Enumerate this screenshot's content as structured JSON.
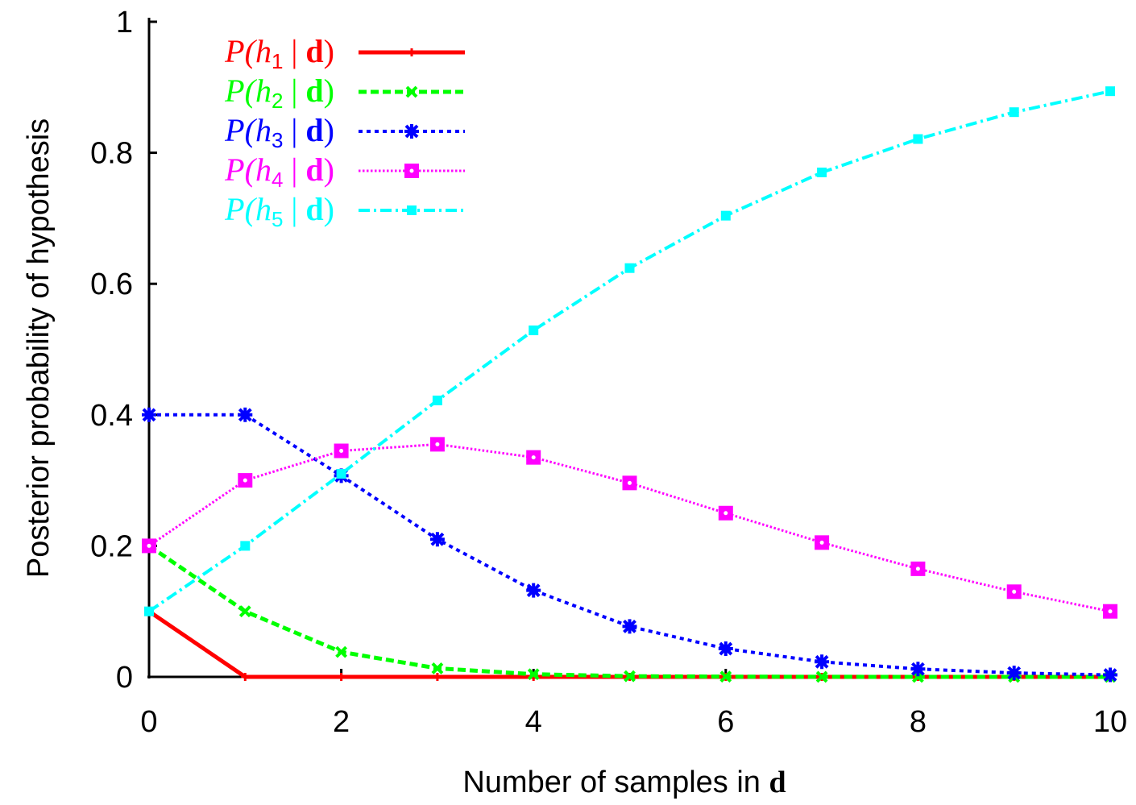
{
  "chart_data": {
    "type": "line",
    "title": "",
    "xlabel": "Number of samples in ",
    "xlabel_bold": "d",
    "ylabel": "Posterior probability of hypothesis",
    "xlim": [
      0,
      10
    ],
    "ylim": [
      0,
      1
    ],
    "xticks": [
      "0",
      "2",
      "4",
      "6",
      "8",
      "10"
    ],
    "yticks": [
      "0",
      "0.2",
      "0.4",
      "0.6",
      "0.8",
      "1"
    ],
    "grid": false,
    "legend_position": "top-left",
    "x": [
      0,
      1,
      2,
      3,
      4,
      5,
      6,
      7,
      8,
      9,
      10
    ],
    "series": [
      {
        "legend": {
          "p": "P(",
          "h": "h",
          "sub": "1",
          "bar": " | ",
          "d": "d",
          "close": ")"
        },
        "color": "#ff0000",
        "dash": "solid",
        "marker": "plus",
        "values": [
          0.1,
          0,
          0,
          0,
          0,
          0,
          0,
          0,
          0,
          0,
          0
        ]
      },
      {
        "legend": {
          "p": "P(",
          "h": "h",
          "sub": "2",
          "bar": " | ",
          "d": "d",
          "close": ")"
        },
        "color": "#00ff00",
        "dash": "dashed",
        "marker": "x",
        "values": [
          0.2,
          0.1,
          0.038,
          0.013,
          0.004,
          0.001,
          0.0004,
          0.0001,
          0,
          0,
          0
        ]
      },
      {
        "legend": {
          "p": "P(",
          "h": "h",
          "sub": "3",
          "bar": " | ",
          "d": "d",
          "close": ")"
        },
        "color": "#0000ff",
        "dash": "dotted",
        "marker": "star",
        "values": [
          0.4,
          0.4,
          0.307,
          0.21,
          0.132,
          0.077,
          0.043,
          0.023,
          0.012,
          0.006,
          0.003
        ]
      },
      {
        "legend": {
          "p": "P(",
          "h": "h",
          "sub": "4",
          "bar": " | ",
          "d": "d",
          "close": ")"
        },
        "color": "#ff00ff",
        "dash": "finedotted",
        "marker": "square-open",
        "values": [
          0.2,
          0.3,
          0.345,
          0.355,
          0.335,
          0.296,
          0.25,
          0.205,
          0.165,
          0.13,
          0.1
        ]
      },
      {
        "legend": {
          "p": "P(",
          "h": "h",
          "sub": "5",
          "bar": " | ",
          "d": "d",
          "close": ")"
        },
        "color": "#00ffff",
        "dash": "dashdot",
        "marker": "square",
        "values": [
          0.1,
          0.2,
          0.31,
          0.422,
          0.529,
          0.624,
          0.704,
          0.77,
          0.821,
          0.862,
          0.894
        ]
      }
    ]
  }
}
